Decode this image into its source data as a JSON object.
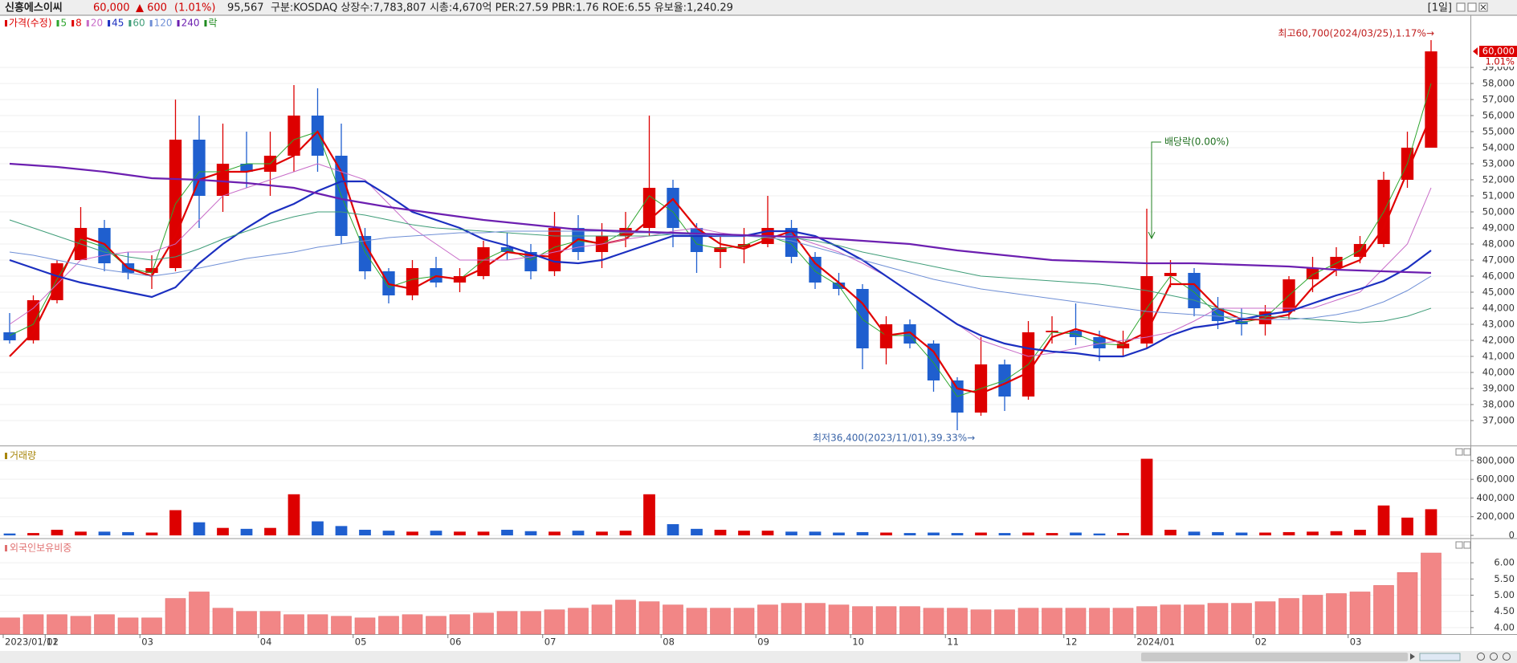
{
  "header": {
    "name": "신흥에스이씨",
    "price": "60,000",
    "change": "▲ 600",
    "rate": "(1.01%)",
    "volume": "95,567",
    "info": "구분:KOSDAQ 상장수:7,783,807 시총:4,670억 PER:27.59 PBR:1.76 ROE:6.55 유보율:1,240.29",
    "period": "[1일]"
  },
  "chart_data": [
    {
      "type": "candlestick",
      "price_name": "가격(수정)",
      "legend_extra": "락",
      "up_color": "#dd0000",
      "down_color": "#1f5fcf",
      "grid": true,
      "categories": [
        "2023/01/11",
        null,
        "02",
        null,
        null,
        null,
        "03",
        null,
        null,
        null,
        null,
        "04",
        null,
        null,
        null,
        "05",
        null,
        null,
        null,
        "06",
        null,
        null,
        null,
        "07",
        null,
        null,
        null,
        null,
        "08",
        null,
        null,
        null,
        "09",
        null,
        null,
        null,
        "10",
        null,
        null,
        null,
        "11",
        null,
        null,
        null,
        null,
        "12",
        null,
        null,
        "2024/01",
        null,
        null,
        null,
        null,
        "02",
        null,
        null,
        null,
        "03",
        null,
        null,
        null
      ],
      "open": [
        42500,
        42000,
        44500,
        47000,
        49000,
        46800,
        46200,
        46500,
        54500,
        51000,
        53000,
        52500,
        53500,
        56000,
        53500,
        48500,
        46300,
        44800,
        46500,
        45600,
        46000,
        47800,
        47500,
        46300,
        49000,
        47500,
        48500,
        49000,
        51500,
        49000,
        47500,
        47800,
        48000,
        49000,
        47200,
        45600,
        45200,
        41500,
        43000,
        41800,
        39500,
        37500,
        40500,
        38500,
        42500,
        42600,
        42200,
        41500,
        41800,
        46000,
        46200,
        44000,
        43200,
        43000,
        43800,
        45800,
        46500,
        47200,
        48000,
        52000,
        54000
      ],
      "high": [
        43700,
        44800,
        47000,
        50300,
        49500,
        47500,
        47300,
        57000,
        56000,
        55500,
        55000,
        55000,
        57900,
        57700,
        55500,
        49000,
        46500,
        47000,
        47200,
        46500,
        48200,
        48700,
        48000,
        50000,
        49800,
        49300,
        50000,
        56000,
        52000,
        49300,
        48600,
        49000,
        51000,
        49500,
        47500,
        46200,
        45500,
        43500,
        43300,
        42000,
        39700,
        42200,
        40800,
        43200,
        43500,
        44300,
        42600,
        42600,
        50200,
        47000,
        46500,
        44700,
        44000,
        44200,
        46000,
        47200,
        47800,
        48500,
        52500,
        55000,
        60700
      ],
      "low": [
        41800,
        41800,
        44300,
        47000,
        46300,
        45800,
        45200,
        46300,
        49000,
        50000,
        51500,
        51000,
        52500,
        52500,
        48000,
        45800,
        44300,
        44500,
        45300,
        45000,
        45800,
        47000,
        45800,
        46000,
        47000,
        46500,
        47800,
        48500,
        47800,
        46200,
        46500,
        46800,
        47800,
        46800,
        45200,
        44800,
        40200,
        40500,
        41500,
        38800,
        36400,
        37300,
        37600,
        38300,
        41800,
        41700,
        40700,
        41000,
        41500,
        45300,
        43500,
        42700,
        42300,
        42300,
        43300,
        45000,
        46000,
        46800,
        47800,
        51500,
        54000
      ],
      "close": [
        42000,
        44500,
        46800,
        49000,
        46800,
        46200,
        46500,
        54500,
        51000,
        53000,
        52500,
        53500,
        56000,
        53500,
        48500,
        46300,
        44800,
        46500,
        45600,
        46000,
        47800,
        47500,
        46300,
        49000,
        47500,
        48500,
        49000,
        51500,
        49000,
        47500,
        47800,
        48000,
        49000,
        47200,
        45600,
        45200,
        41500,
        43000,
        41800,
        39500,
        37500,
        40500,
        38500,
        42500,
        42600,
        42200,
        41500,
        41800,
        46000,
        46200,
        44000,
        43200,
        43000,
        43800,
        45800,
        46500,
        47200,
        48000,
        52000,
        54000,
        60000
      ],
      "series": [
        {
          "name": "5",
          "color": "#2ea52e",
          "width": 1,
          "values": [
            42300,
            43000,
            45800,
            48300,
            47800,
            46500,
            46200,
            50500,
            52500,
            52500,
            53000,
            53000,
            54500,
            55000,
            51000,
            47500,
            45300,
            45800,
            46000,
            45800,
            47000,
            47700,
            47000,
            47800,
            48200,
            48000,
            48800,
            51000,
            50000,
            48000,
            47700,
            47900,
            48500,
            48000,
            46300,
            45400,
            43300,
            42300,
            42300,
            40600,
            38500,
            39000,
            39500,
            40500,
            42500,
            42400,
            41800,
            41700,
            44000,
            46000,
            45000,
            43600,
            43100,
            43400,
            44800,
            46100,
            46800,
            47600,
            50000,
            53000,
            58000
          ]
        },
        {
          "name": "8",
          "color": "#e00000",
          "width": 2.2,
          "values": [
            41000,
            42500,
            45500,
            48500,
            48000,
            46500,
            46000,
            48500,
            52000,
            52500,
            52500,
            52800,
            53500,
            55000,
            52500,
            48000,
            45500,
            45200,
            46000,
            45800,
            46500,
            47500,
            47300,
            47200,
            48300,
            48000,
            48300,
            49500,
            50800,
            49000,
            48000,
            47700,
            48300,
            48800,
            46800,
            45600,
            44300,
            42300,
            42500,
            41300,
            39000,
            38700,
            39300,
            40000,
            42200,
            42700,
            42300,
            41800,
            42500,
            45500,
            45500,
            44000,
            43300,
            43300,
            43600,
            45300,
            46400,
            47000,
            49000,
            52500,
            56000
          ]
        },
        {
          "name": "20",
          "color": "#c86cc8",
          "width": 1,
          "values": [
            43000,
            44000,
            45500,
            47000,
            47300,
            47500,
            47500,
            48000,
            49500,
            51000,
            51500,
            52000,
            52500,
            53000,
            52500,
            52000,
            50500,
            49000,
            48000,
            47000,
            47000,
            47000,
            47200,
            47500,
            47800,
            48000,
            48300,
            48500,
            48800,
            49000,
            48700,
            48500,
            48500,
            48500,
            48000,
            47500,
            46800,
            46000,
            45000,
            44000,
            43000,
            42000,
            41500,
            41000,
            41200,
            41500,
            41800,
            42000,
            42200,
            42500,
            43200,
            44000,
            44000,
            44000,
            44000,
            44000,
            44500,
            45000,
            46500,
            48000,
            51500
          ]
        },
        {
          "name": "45",
          "color": "#1b2fc0",
          "width": 2.2,
          "values": [
            47000,
            46500,
            46000,
            45600,
            45300,
            45000,
            44700,
            45300,
            46800,
            48000,
            49000,
            49900,
            50500,
            51300,
            51900,
            51900,
            51000,
            50000,
            49500,
            49000,
            48300,
            47900,
            47400,
            46900,
            46800,
            47000,
            47500,
            48000,
            48500,
            48500,
            48500,
            48500,
            48800,
            48800,
            48500,
            47800,
            47000,
            46000,
            45000,
            44000,
            43000,
            42300,
            41800,
            41500,
            41300,
            41200,
            41000,
            41000,
            41500,
            42300,
            42800,
            43000,
            43300,
            43600,
            43800,
            44300,
            44800,
            45200,
            45700,
            46500,
            47600
          ]
        },
        {
          "name": "60",
          "color": "#3f9d78",
          "width": 1,
          "values": [
            49500,
            49000,
            48500,
            48000,
            47500,
            47200,
            47000,
            47200,
            47700,
            48300,
            48800,
            49300,
            49700,
            50000,
            50000,
            49800,
            49500,
            49200,
            49000,
            48900,
            48800,
            48700,
            48600,
            48500,
            48500,
            48500,
            48500,
            48500,
            48600,
            48600,
            48600,
            48500,
            48500,
            48400,
            48200,
            47900,
            47500,
            47200,
            46900,
            46600,
            46300,
            46000,
            45900,
            45800,
            45700,
            45600,
            45500,
            45300,
            45100,
            44800,
            44500,
            44000,
            43700,
            43500,
            43400,
            43300,
            43200,
            43100,
            43200,
            43500,
            44000
          ]
        },
        {
          "name": "120",
          "color": "#6f8fd6",
          "width": 1,
          "values": [
            47500,
            47300,
            47000,
            46700,
            46400,
            46200,
            46000,
            46200,
            46500,
            46800,
            47100,
            47300,
            47500,
            47800,
            48000,
            48200,
            48400,
            48500,
            48600,
            48700,
            48700,
            48800,
            48800,
            48800,
            48800,
            48800,
            48700,
            48700,
            48600,
            48600,
            48500,
            48500,
            48400,
            48200,
            47800,
            47400,
            47000,
            46600,
            46200,
            45800,
            45500,
            45200,
            45000,
            44800,
            44600,
            44400,
            44200,
            44000,
            43800,
            43700,
            43600,
            43500,
            43400,
            43300,
            43300,
            43400,
            43600,
            43900,
            44400,
            45100,
            46000
          ]
        },
        {
          "name": "240",
          "color": "#6c1fb0",
          "width": 2.2,
          "values": [
            53000,
            52900,
            52800,
            52650,
            52500,
            52300,
            52100,
            52050,
            52000,
            51900,
            51800,
            51650,
            51500,
            51150,
            50800,
            50550,
            50300,
            50100,
            49900,
            49700,
            49500,
            49350,
            49200,
            49050,
            48900,
            48850,
            48800,
            48750,
            48700,
            48650,
            48600,
            48550,
            48500,
            48450,
            48400,
            48300,
            48200,
            48100,
            48000,
            47800,
            47600,
            47450,
            47300,
            47150,
            47000,
            46950,
            46900,
            46850,
            46800,
            46800,
            46800,
            46750,
            46700,
            46650,
            46600,
            46500,
            46400,
            46350,
            46300,
            46250,
            46200
          ]
        }
      ],
      "ylim": [
        35500,
        62250
      ],
      "yticks": [
        {
          "value": 37000,
          "label": "37,000"
        },
        {
          "value": 38000,
          "label": "38,000"
        },
        {
          "value": 39000,
          "label": "39,000"
        },
        {
          "value": 40000,
          "label": "40,000"
        },
        {
          "value": 41000,
          "label": "41,000"
        },
        {
          "value": 42000,
          "label": "42,000"
        },
        {
          "value": 43000,
          "label": "43,000"
        },
        {
          "value": 44000,
          "label": "44,000"
        },
        {
          "value": 45000,
          "label": "45,000"
        },
        {
          "value": 46000,
          "label": "46,000"
        },
        {
          "value": 47000,
          "label": "47,000"
        },
        {
          "value": 48000,
          "label": "48,000"
        },
        {
          "value": 49000,
          "label": "49,000"
        },
        {
          "value": 50000,
          "label": "50,000"
        },
        {
          "value": 51000,
          "label": "51,000"
        },
        {
          "value": 52000,
          "label": "52,000"
        },
        {
          "value": 53000,
          "label": "53,000"
        },
        {
          "value": 54000,
          "label": "54,000"
        },
        {
          "value": 55000,
          "label": "55,000"
        },
        {
          "value": 56000,
          "label": "56,000"
        },
        {
          "value": 57000,
          "label": "57,000"
        },
        {
          "value": 58000,
          "label": "58,000"
        },
        {
          "value": 59000,
          "label": "59,000"
        }
      ],
      "annotations": [
        "최고60,700(2024/03/25),1.17%→",
        "최저36,400(2023/11/01),39.33%→",
        "배당락(0.00%)"
      ],
      "price_tag": "60,000",
      "price_tag_sub": "1.01%"
    },
    {
      "type": "bar",
      "title": "거래량",
      "color_by_price": true,
      "grid": true,
      "values": [
        20000,
        25000,
        60000,
        40000,
        40000,
        35000,
        30000,
        270000,
        140000,
        80000,
        70000,
        80000,
        440000,
        150000,
        100000,
        60000,
        50000,
        40000,
        50000,
        40000,
        40000,
        60000,
        45000,
        40000,
        50000,
        40000,
        50000,
        440000,
        120000,
        70000,
        60000,
        50000,
        50000,
        40000,
        40000,
        30000,
        35000,
        30000,
        25000,
        30000,
        25000,
        30000,
        25000,
        30000,
        25000,
        30000,
        20000,
        25000,
        820000,
        60000,
        40000,
        35000,
        30000,
        30000,
        35000,
        40000,
        45000,
        60000,
        320000,
        190000,
        280000
      ],
      "ylim": [
        0,
        945000
      ],
      "yticks": [
        0,
        {
          "value": 200000,
          "label": "200,000"
        },
        {
          "value": 400000,
          "label": "400,000"
        },
        {
          "value": 600000,
          "label": "600,000"
        },
        {
          "value": 800000,
          "label": "800,000"
        }
      ]
    },
    {
      "type": "bar",
      "title": "외국인보유비중",
      "color": "#f28686",
      "grid": true,
      "values": [
        4.3,
        4.4,
        4.4,
        4.35,
        4.4,
        4.3,
        4.3,
        4.9,
        5.1,
        4.6,
        4.5,
        4.5,
        4.4,
        4.4,
        4.35,
        4.3,
        4.35,
        4.4,
        4.35,
        4.4,
        4.45,
        4.5,
        4.5,
        4.55,
        4.6,
        4.7,
        4.85,
        4.8,
        4.7,
        4.6,
        4.6,
        4.6,
        4.7,
        4.75,
        4.75,
        4.7,
        4.65,
        4.65,
        4.65,
        4.6,
        4.6,
        4.55,
        4.55,
        4.6,
        4.6,
        4.6,
        4.6,
        4.6,
        4.65,
        4.7,
        4.7,
        4.75,
        4.75,
        4.8,
        4.9,
        5.0,
        5.05,
        5.1,
        5.3,
        5.7,
        6.3
      ],
      "ylim": [
        3.8,
        6.72
      ],
      "yticks": [
        {
          "value": 4,
          "label": "4.00"
        },
        {
          "value": 4.5,
          "label": "4.50"
        },
        {
          "value": 5,
          "label": "5.00"
        },
        {
          "value": 5.5,
          "label": "5.50"
        },
        {
          "value": 6,
          "label": "6.00"
        }
      ]
    }
  ]
}
